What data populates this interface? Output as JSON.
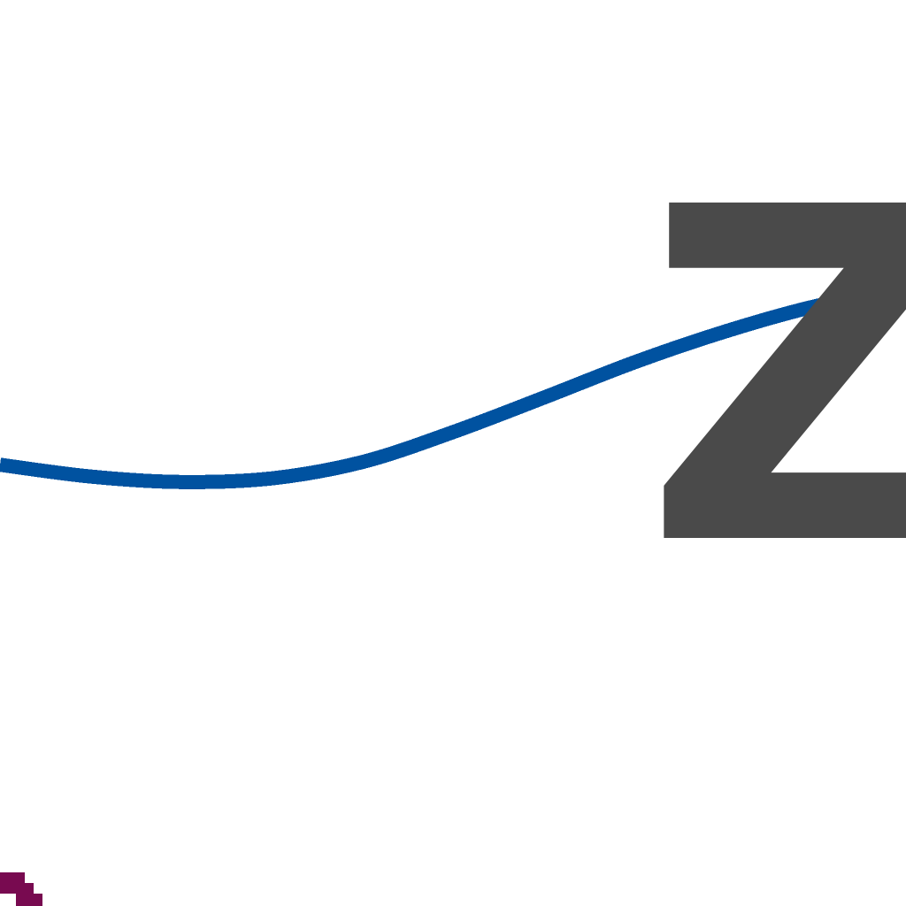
{
  "chart_data": {
    "type": "line",
    "text_mark": "Z",
    "colors": {
      "series_line": "#0052a0",
      "text_mark": "#4a4a4a",
      "corner_mark": "#780a50"
    },
    "series": [
      {
        "color": "#0052a0",
        "points": [
          [
            0.0,
            0.487
          ],
          [
            0.1,
            0.474
          ],
          [
            0.2,
            0.468
          ],
          [
            0.3,
            0.472
          ],
          [
            0.4,
            0.49
          ],
          [
            0.5,
            0.523
          ],
          [
            0.6,
            0.561
          ],
          [
            0.7,
            0.6
          ],
          [
            0.8,
            0.634
          ],
          [
            0.9,
            0.662
          ],
          [
            1.0,
            0.681
          ]
        ]
      }
    ],
    "grid": false,
    "legend": "none"
  }
}
